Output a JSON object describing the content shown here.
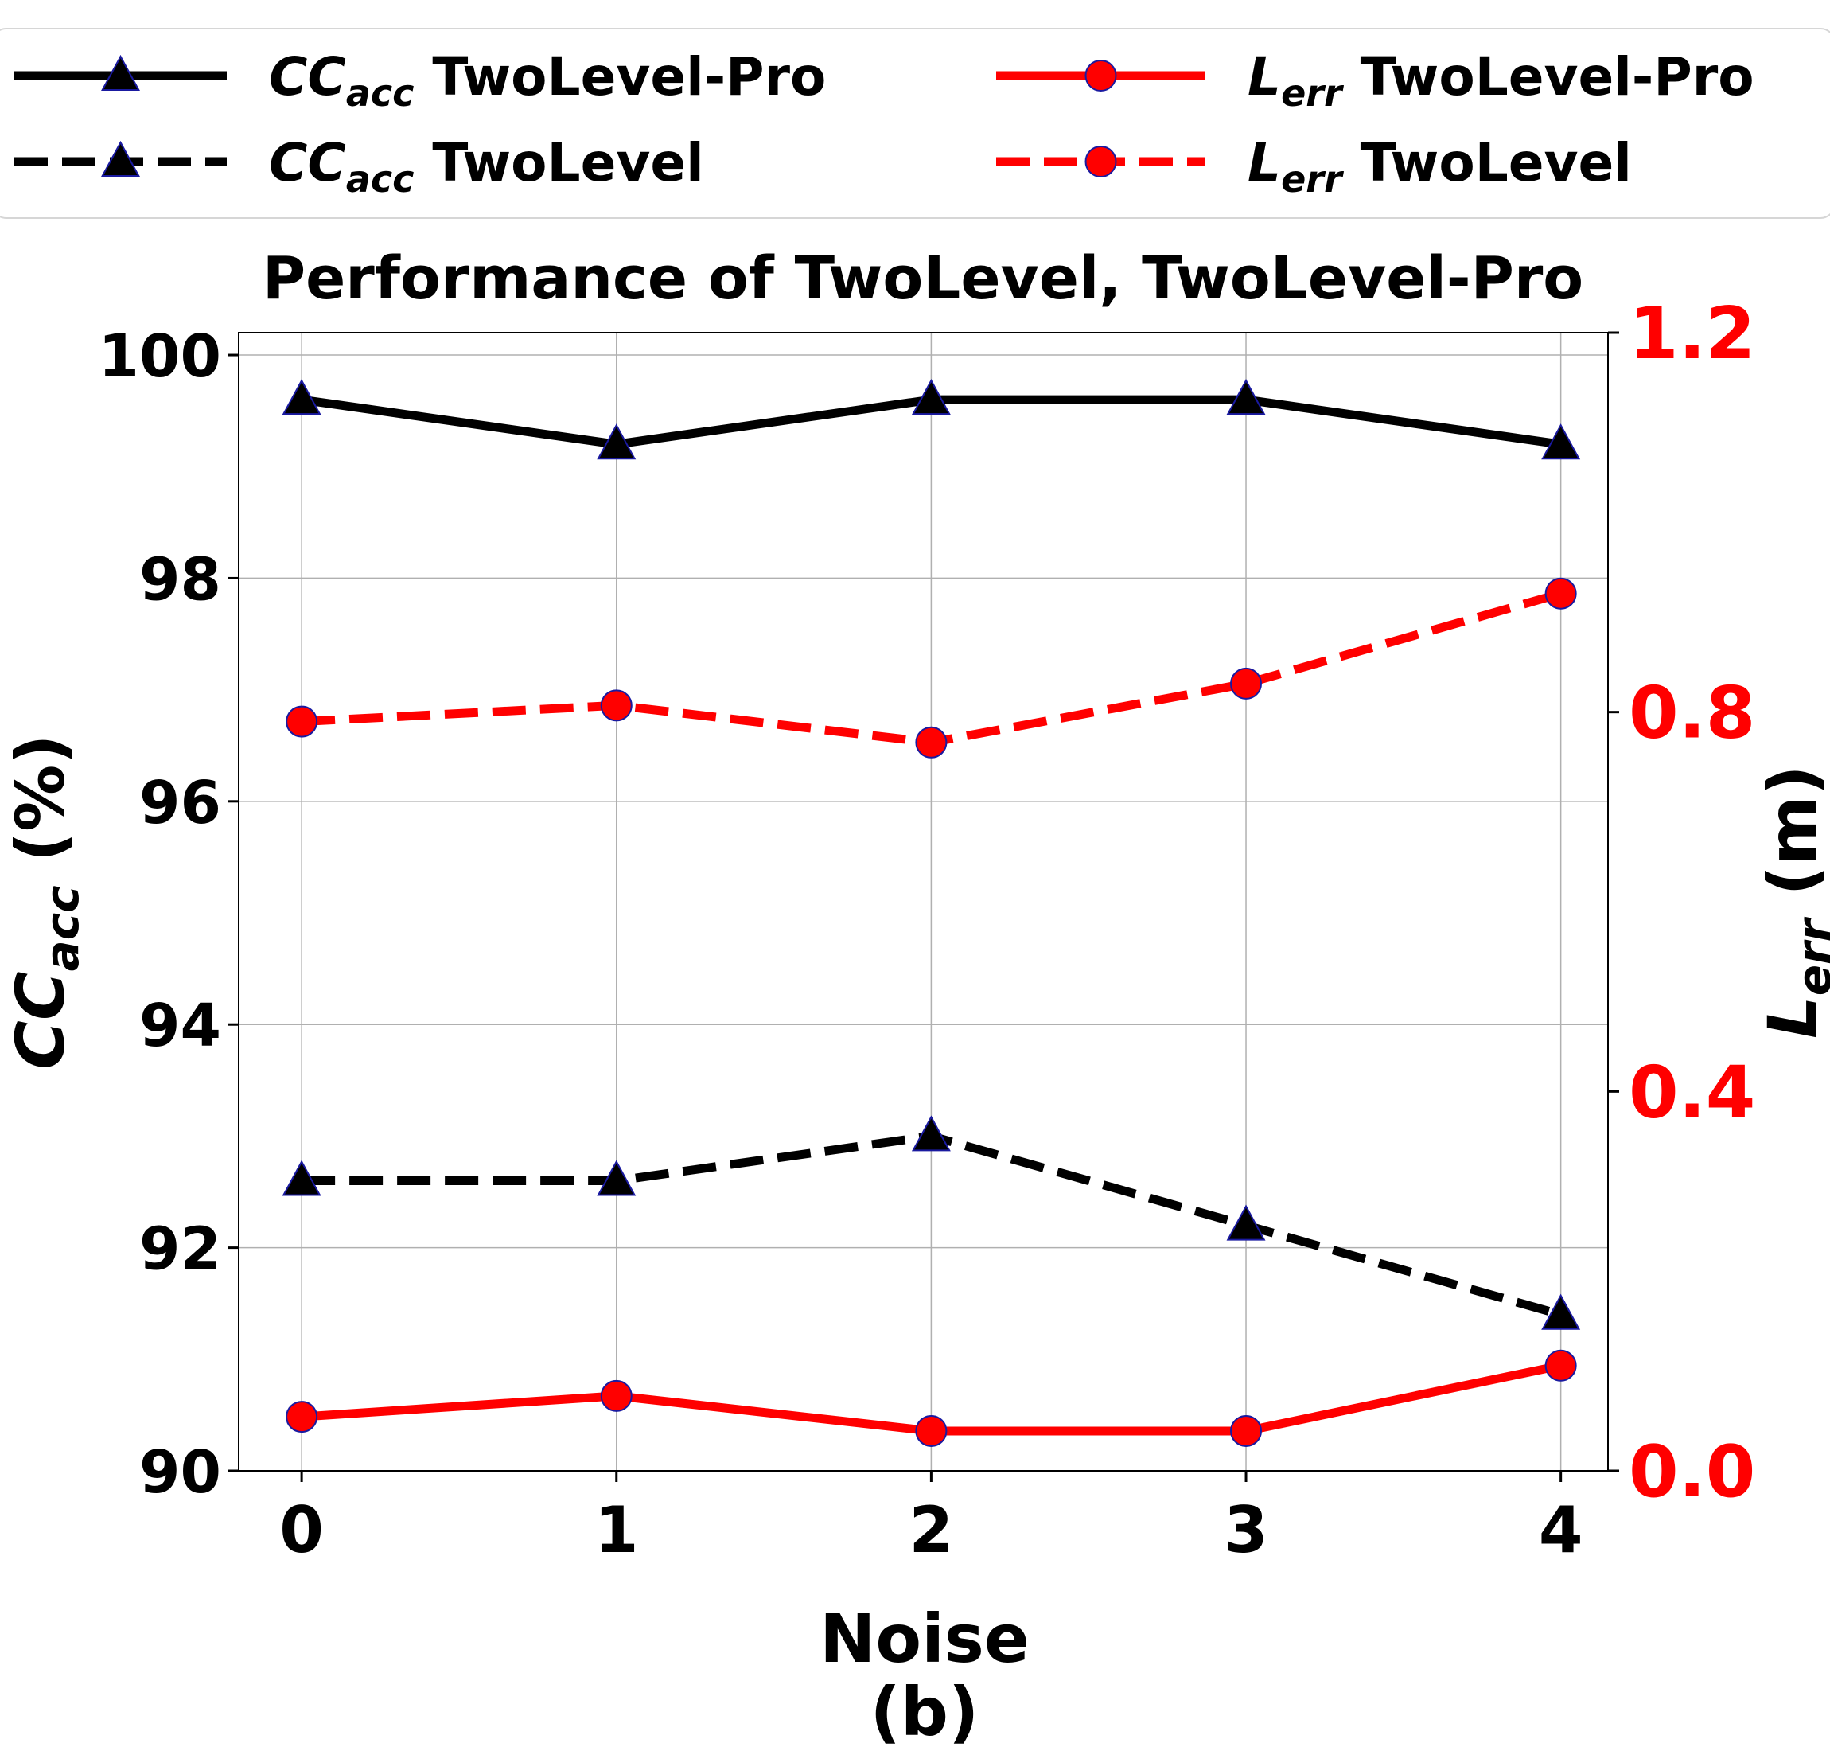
{
  "chart_data": {
    "type": "line",
    "title": "Performance of TwoLevel, TwoLevel-Pro",
    "caption": "(b)",
    "xlabel": "Noise",
    "ylabel_left": {
      "base": "CC",
      "sub": "acc",
      "suffix": " (%)"
    },
    "ylabel_right": {
      "base": "L",
      "sub": "err",
      "suffix": " (m)"
    },
    "x": [
      0,
      1,
      2,
      3,
      4
    ],
    "xlim": [
      -0.2,
      4.15
    ],
    "ylim_left": [
      90,
      100.2
    ],
    "ylim_right": [
      0,
      1.2
    ],
    "yticks_left": [
      "90",
      "92",
      "94",
      "96",
      "98",
      "100"
    ],
    "yticks_right": [
      "0.0",
      "0.4",
      "0.8",
      "1.2"
    ],
    "xticks": [
      "0",
      "1",
      "2",
      "3",
      "4"
    ],
    "grid": true,
    "legend_position": "top, outside plot, 2 columns",
    "series": [
      {
        "name": "TwoLevel-Pro",
        "name_base": "CC",
        "name_sub": "acc",
        "axis": "left",
        "style": "solid",
        "marker": "triangle",
        "color": "#000000",
        "values": [
          99.6,
          99.2,
          99.6,
          99.6,
          99.2
        ]
      },
      {
        "name": "TwoLevel",
        "name_base": "CC",
        "name_sub": "acc",
        "axis": "left",
        "style": "dashed",
        "marker": "triangle",
        "color": "#000000",
        "values": [
          92.6,
          92.6,
          93.0,
          92.2,
          91.4
        ]
      },
      {
        "name": "TwoLevel-Pro",
        "name_base": "L",
        "name_sub": "err",
        "axis": "right",
        "style": "solid",
        "marker": "circle",
        "color": "#ff0000",
        "values": [
          0.057,
          0.079,
          0.042,
          0.042,
          0.111
        ]
      },
      {
        "name": "TwoLevel",
        "name_base": "L",
        "name_sub": "err",
        "axis": "right",
        "style": "dashed",
        "marker": "circle",
        "color": "#ff0000",
        "values": [
          0.79,
          0.807,
          0.768,
          0.83,
          0.925
        ]
      }
    ]
  }
}
